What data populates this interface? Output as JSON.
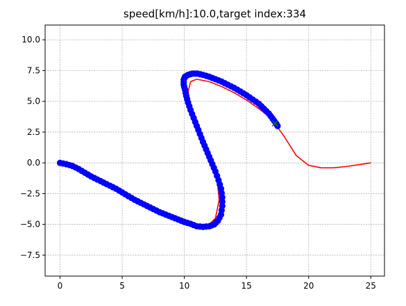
{
  "chart_data": {
    "type": "line",
    "title": "speed[km/h]:10.0,target index:334",
    "xlabel": "",
    "ylabel": "",
    "xlim": [
      -1.2,
      26.1
    ],
    "ylim": [
      -9.2,
      11.2
    ],
    "xticks": [
      0,
      5,
      10,
      15,
      20,
      25
    ],
    "xtick_labels": [
      "0",
      "5",
      "10",
      "15",
      "20",
      "25"
    ],
    "yticks": [
      -7.5,
      -5.0,
      -2.5,
      0.0,
      2.5,
      5.0,
      7.5,
      10.0
    ],
    "ytick_labels": [
      "−7.5",
      "−5.0",
      "−2.5",
      "0.0",
      "2.5",
      "5.0",
      "7.5",
      "10.0"
    ],
    "grid": true,
    "series": [
      {
        "color": "#ff0000",
        "style": "line",
        "x": [
          0,
          1,
          2,
          3,
          4,
          5,
          6,
          7,
          8,
          9,
          10,
          11,
          12,
          12.5,
          12.8,
          12.6,
          12,
          11,
          10.5,
          10.3,
          10.5,
          11,
          12,
          13,
          14,
          15,
          16,
          17,
          18,
          19,
          20,
          21,
          22,
          23,
          24,
          25
        ],
        "y": [
          0,
          -0.4,
          -0.9,
          -1.4,
          -1.9,
          -2.5,
          -3.0,
          -3.5,
          -4.0,
          -4.4,
          -4.8,
          -5.0,
          -5.0,
          -4.5,
          -3.0,
          -1.0,
          0.8,
          3.0,
          4.7,
          5.8,
          6.6,
          6.8,
          6.6,
          6.2,
          5.7,
          5.1,
          4.4,
          3.6,
          2.2,
          0.6,
          -0.2,
          -0.4,
          -0.4,
          -0.3,
          -0.15,
          0.0
        ]
      },
      {
        "color": "#0000ff",
        "style": "markers",
        "x": [
          0,
          0.5,
          1,
          1.5,
          2,
          2.5,
          3,
          3.5,
          4,
          4.5,
          5,
          5.5,
          6,
          6.5,
          7,
          7.5,
          8,
          8.5,
          9,
          9.5,
          10,
          10.5,
          11,
          11.5,
          12,
          12.4,
          12.7,
          12.95,
          13.05,
          13.05,
          12.95,
          12.75,
          12.5,
          12.25,
          12.0,
          11.75,
          11.5,
          11.25,
          11.0,
          10.75,
          10.5,
          10.3,
          10.15,
          10.05,
          9.95,
          9.95,
          10.05,
          10.3,
          10.65,
          11.05,
          11.5,
          12.0,
          12.5,
          13.0,
          13.5,
          14.0,
          14.5,
          15.0,
          15.5,
          16.0,
          16.4,
          16.8,
          17.1,
          17.35,
          17.5
        ],
        "y": [
          0,
          -0.1,
          -0.25,
          -0.5,
          -0.8,
          -1.1,
          -1.35,
          -1.6,
          -1.85,
          -2.1,
          -2.4,
          -2.7,
          -3.0,
          -3.25,
          -3.5,
          -3.75,
          -4.0,
          -4.2,
          -4.4,
          -4.6,
          -4.8,
          -4.95,
          -5.15,
          -5.2,
          -5.15,
          -5.0,
          -4.7,
          -4.2,
          -3.5,
          -2.8,
          -2.1,
          -1.4,
          -0.7,
          -0.1,
          0.5,
          1.1,
          1.7,
          2.35,
          3.0,
          3.65,
          4.3,
          4.9,
          5.45,
          5.95,
          6.35,
          6.75,
          7.0,
          7.15,
          7.25,
          7.25,
          7.15,
          7.0,
          6.8,
          6.6,
          6.35,
          6.1,
          5.8,
          5.5,
          5.15,
          4.8,
          4.4,
          4.0,
          3.6,
          3.25,
          3.0
        ]
      },
      {
        "color": "#008000",
        "style": "cross",
        "x": [
          17.3
        ],
        "y": [
          3.2
        ]
      }
    ]
  }
}
